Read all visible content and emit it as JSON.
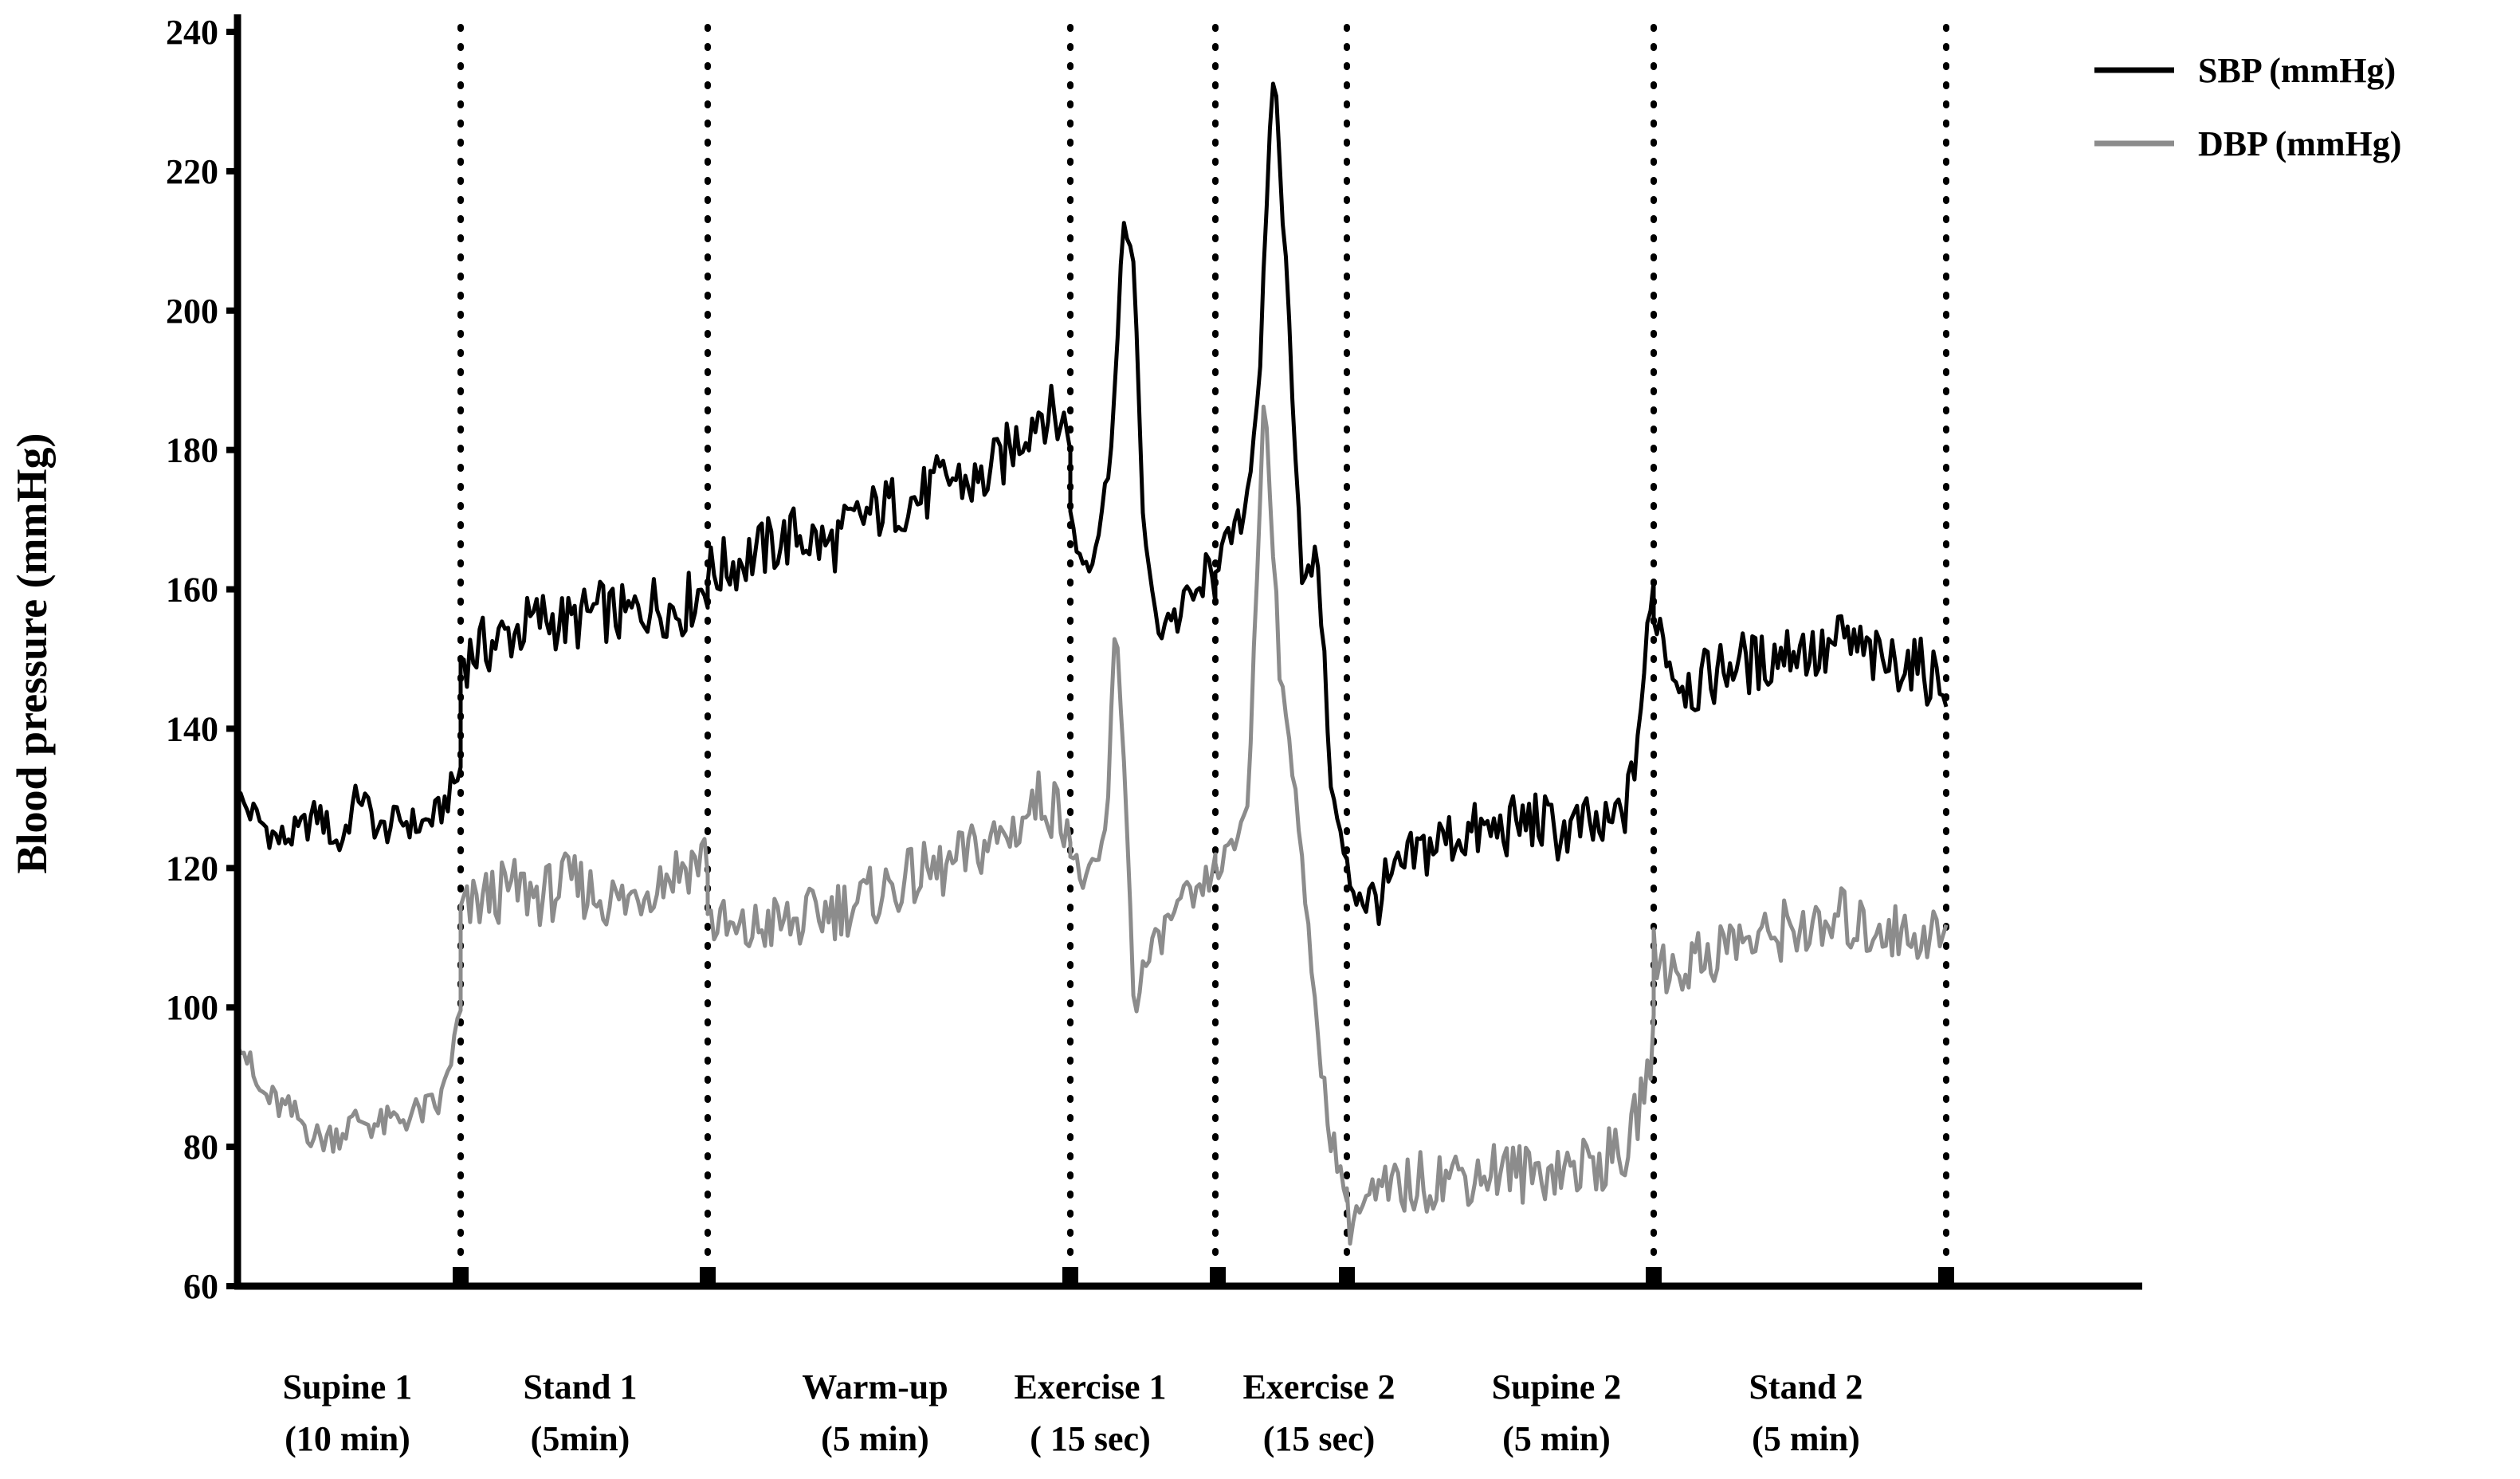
{
  "chart_data": {
    "type": "line",
    "title": "",
    "xlabel": "",
    "ylabel": "Blood pressure (mmHg)",
    "ylim": [
      60,
      240
    ],
    "yticks": [
      60,
      80,
      100,
      120,
      140,
      160,
      180,
      200,
      220,
      240
    ],
    "grid": false,
    "legend_position": "top-right",
    "phase_boundaries": [
      0,
      10,
      15,
      20,
      20.25,
      20.5,
      25,
      30
    ],
    "phases": [
      {
        "label": [
          "Supine 1",
          "(10 min)"
        ]
      },
      {
        "label": [
          "Stand 1",
          "(5min)"
        ]
      },
      {
        "label": [
          "Warm-up",
          "(5 min)"
        ]
      },
      {
        "label": [
          "Exercise 1",
          "( 15 sec)"
        ]
      },
      {
        "label": [
          "Exercise 2",
          "(15 sec)"
        ]
      },
      {
        "label": [
          "Supine 2",
          "(5 min)"
        ]
      },
      {
        "label": [
          "Stand 2",
          "(5 min)"
        ]
      }
    ],
    "series": [
      {
        "name": "SBP (mmHg)",
        "color": "#000000",
        "segments": [
          {
            "phase": 0,
            "values": [
              130,
              127,
              124,
              125,
              128,
              123,
              131,
              125,
              127,
              126,
              128,
              134
            ]
          },
          {
            "phase": 1,
            "values": [
              150,
              152,
              154,
              156,
              155,
              157,
              156,
              158,
              157,
              161
            ]
          },
          {
            "phase": 2,
            "values": [
              162,
              164,
              166,
              168,
              166,
              170,
              172,
              173,
              176,
              175,
              180,
              186,
              183
            ]
          },
          {
            "phase": 3,
            "values": [
              170,
              165,
              164,
              168,
              175,
              190,
              215,
              205,
              172,
              158,
              154,
              157,
              155,
              160,
              158,
              163,
              160
            ]
          },
          {
            "phase": 4,
            "values": [
              164,
              167,
              171,
              190,
              236,
              200,
              160,
              165,
              130,
              120
            ]
          },
          {
            "phase": 5,
            "values": [
              119,
              115,
              118,
              122,
              124,
              125,
              125,
              126,
              127,
              125,
              126,
              125,
              130,
              160
            ]
          },
          {
            "phase": 6,
            "values": [
              158,
              148,
              146,
              148,
              150,
              149,
              151,
              152,
              150,
              153,
              151,
              149,
              150,
              148,
              147
            ]
          }
        ]
      },
      {
        "name": "DBP (mmHg)",
        "color": "#8c8c8c",
        "segments": [
          {
            "phase": 0,
            "values": [
              97,
              88,
              86,
              84,
              81,
              82,
              84,
              83,
              84,
              85,
              86,
              99
            ]
          },
          {
            "phase": 1,
            "values": [
              113,
              116,
              117,
              116,
              118,
              116,
              115,
              118,
              120,
              122
            ]
          },
          {
            "phase": 2,
            "values": [
              113,
              110,
              112,
              112,
              114,
              115,
              117,
              119,
              120,
              123,
              125,
              130,
              127
            ]
          },
          {
            "phase": 3,
            "values": [
              122,
              119,
              118,
              120,
              126,
              155,
              135,
              100,
              105,
              108,
              110,
              113,
              114,
              116,
              115,
              118,
              120
            ]
          },
          {
            "phase": 4,
            "values": [
              120,
              122,
              130,
              190,
              145,
              130,
              100,
              82,
              73
            ]
          },
          {
            "phase": 5,
            "values": [
              70,
              72,
              74,
              75,
              76,
              76,
              77,
              76,
              77,
              77,
              78,
              79,
              95
            ]
          },
          {
            "phase": 6,
            "values": [
              108,
              105,
              107,
              108,
              110,
              109,
              111,
              112,
              110,
              113,
              111,
              112,
              110,
              111,
              110
            ]
          }
        ]
      }
    ]
  }
}
